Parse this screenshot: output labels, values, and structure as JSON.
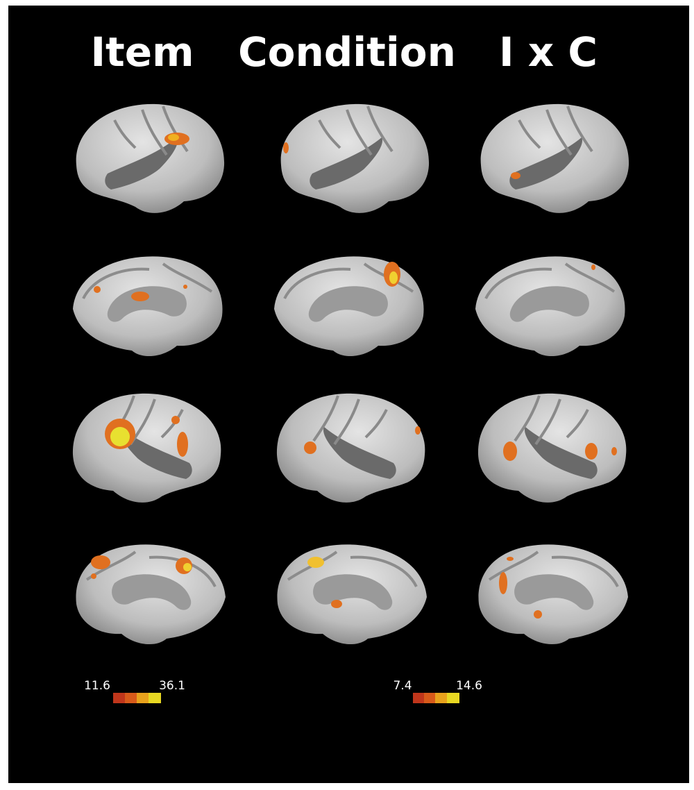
{
  "columns": [
    {
      "title": "Item"
    },
    {
      "title": "Condition"
    },
    {
      "title": "I x C"
    }
  ],
  "colorbars": [
    {
      "min_label": "11.6",
      "max_label": "36.1"
    },
    {
      "min_label": "7.4",
      "max_label": "14.6"
    }
  ]
}
